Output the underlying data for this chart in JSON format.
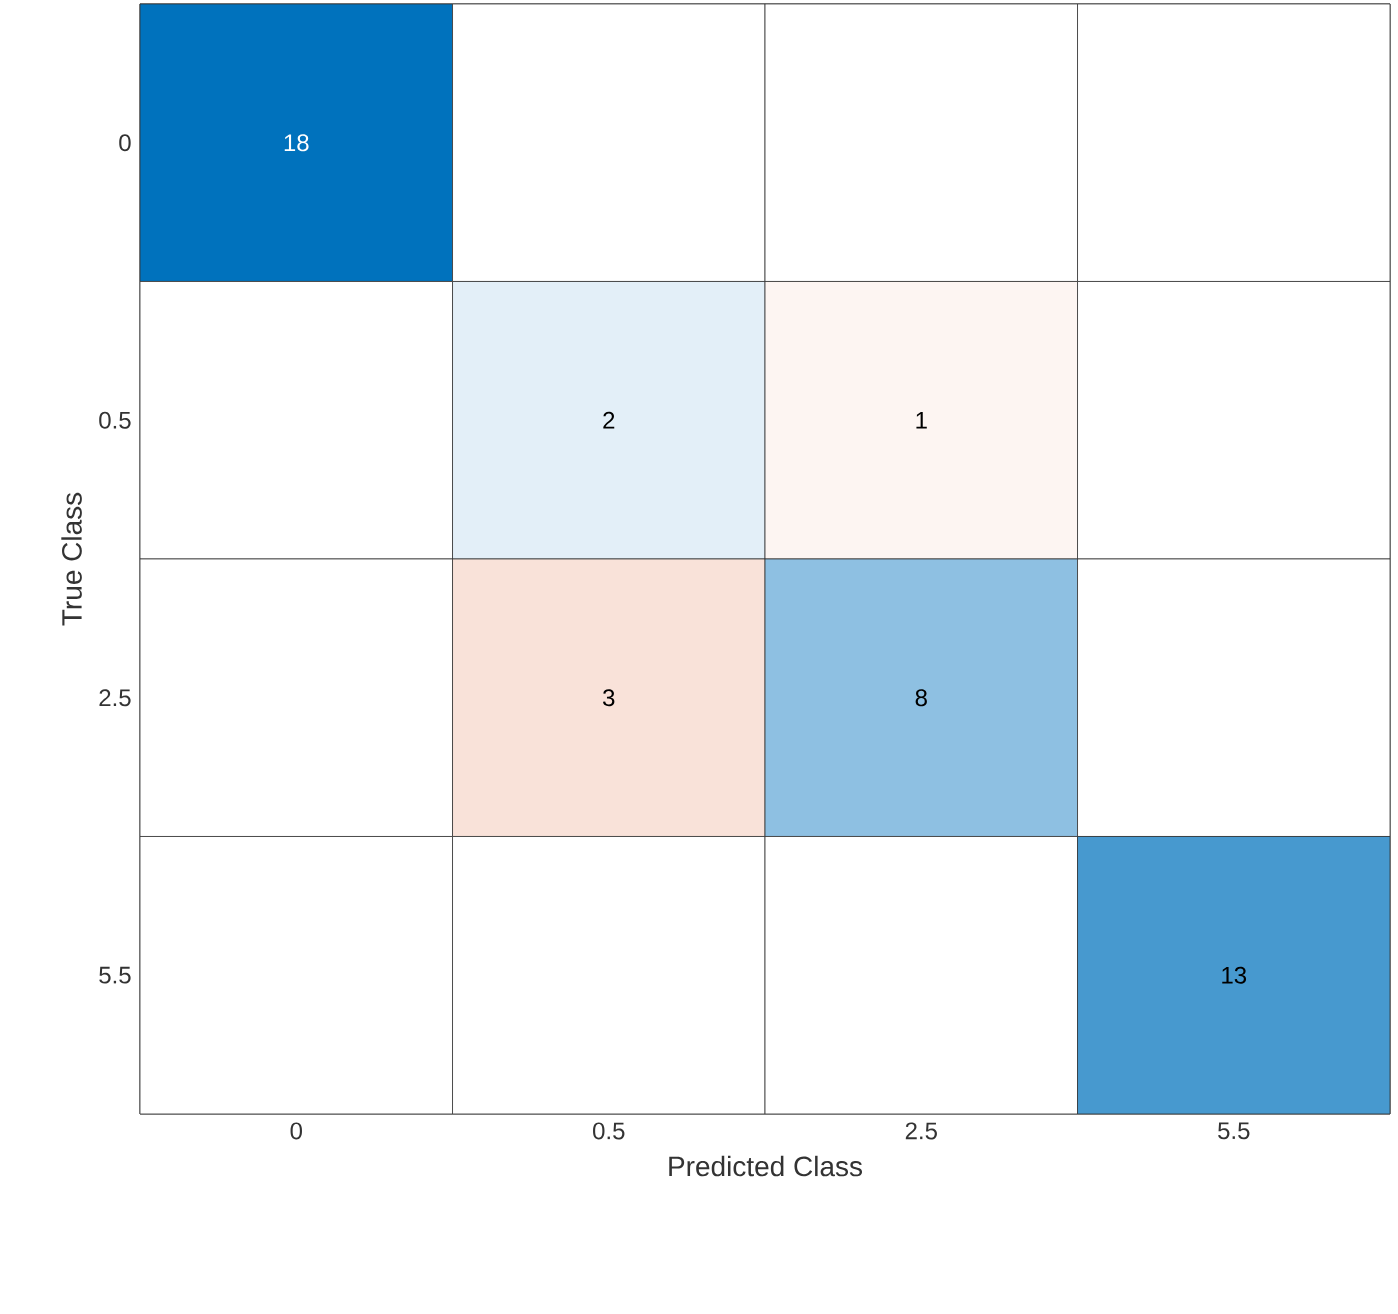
{
  "chart_data": {
    "type": "heatmap",
    "xlabel": "Predicted Class",
    "ylabel": "True Class",
    "categories": [
      "0",
      "0.5",
      "2.5",
      "5.5"
    ],
    "y_categories": [
      "0",
      "0.5",
      "2.5",
      "5.5"
    ],
    "cells": [
      [
        18,
        null,
        null,
        null
      ],
      [
        null,
        2,
        1,
        null
      ],
      [
        null,
        3,
        8,
        null
      ],
      [
        null,
        null,
        null,
        13
      ]
    ],
    "data_labels": true
  }
}
